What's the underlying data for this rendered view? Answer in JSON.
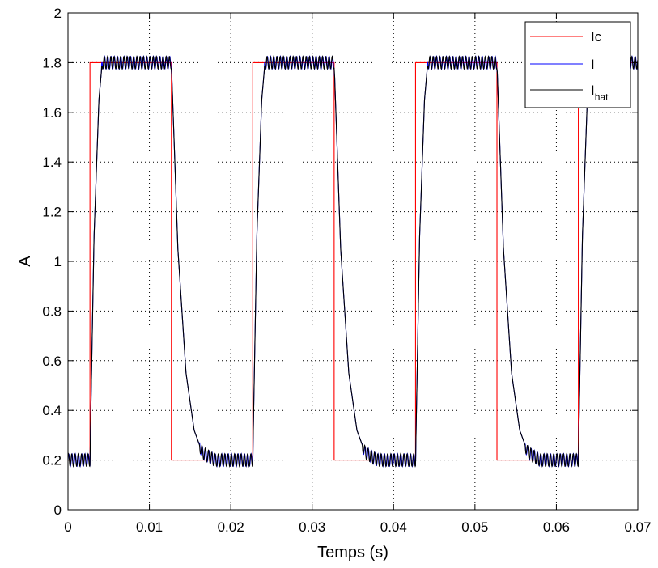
{
  "chart_data": {
    "type": "line",
    "xlabel": "Temps (s)",
    "ylabel": "A",
    "xlim": [
      0,
      0.07
    ],
    "ylim": [
      0,
      2
    ],
    "xticks": [
      "0",
      "0.01",
      "0.02",
      "0.03",
      "0.04",
      "0.05",
      "0.06",
      "0.07"
    ],
    "yticks": [
      "0",
      "0.2",
      "0.4",
      "0.6",
      "0.8",
      "1",
      "1.2",
      "1.4",
      "1.6",
      "1.8",
      "2"
    ],
    "grid": true,
    "legend_position": "top-right",
    "series": [
      {
        "name": "Ic",
        "color": "#ff0000",
        "x": [
          0,
          0.0027,
          0.0027,
          0.0127,
          0.0127,
          0.0227,
          0.0227,
          0.0327,
          0.0327,
          0.0427,
          0.0427,
          0.0527,
          0.0527,
          0.0627,
          0.0627,
          0.07
        ],
        "y": [
          0.2,
          0.2,
          1.8,
          1.8,
          0.2,
          0.2,
          1.8,
          1.8,
          0.2,
          0.2,
          1.8,
          1.8,
          0.2,
          0.2,
          1.8,
          1.8
        ]
      },
      {
        "name": "I",
        "color": "#0000ff",
        "x": [
          0,
          0.0027,
          0.0032,
          0.0038,
          0.0042,
          0.0127,
          0.0135,
          0.0145,
          0.0155,
          0.0165,
          0.018,
          0.0227,
          0.0232,
          0.0238,
          0.0242,
          0.0327,
          0.0335,
          0.0345,
          0.0355,
          0.0365,
          0.038,
          0.0427,
          0.0432,
          0.0438,
          0.0442,
          0.0527,
          0.0535,
          0.0545,
          0.0555,
          0.0565,
          0.058,
          0.0627,
          0.0632,
          0.0638,
          0.0642,
          0.07
        ],
        "y": [
          0.2,
          0.2,
          1.1,
          1.65,
          1.8,
          1.8,
          1.05,
          0.55,
          0.32,
          0.23,
          0.2,
          0.2,
          1.1,
          1.65,
          1.8,
          1.8,
          1.05,
          0.55,
          0.32,
          0.23,
          0.2,
          0.2,
          1.1,
          1.65,
          1.8,
          1.8,
          1.05,
          0.55,
          0.32,
          0.23,
          0.2,
          0.2,
          1.1,
          1.65,
          1.8,
          1.8
        ]
      },
      {
        "name": "I_hat",
        "color": "#000000",
        "x": [
          0,
          0.0027,
          0.0032,
          0.0038,
          0.0042,
          0.0127,
          0.0135,
          0.0145,
          0.0155,
          0.0165,
          0.018,
          0.0227,
          0.0232,
          0.0238,
          0.0242,
          0.0327,
          0.0335,
          0.0345,
          0.0355,
          0.0365,
          0.038,
          0.0427,
          0.0432,
          0.0438,
          0.0442,
          0.0527,
          0.0535,
          0.0545,
          0.0555,
          0.0565,
          0.058,
          0.0627,
          0.0632,
          0.0638,
          0.0642,
          0.07
        ],
        "y": [
          0.2,
          0.2,
          1.1,
          1.65,
          1.8,
          1.8,
          1.05,
          0.55,
          0.32,
          0.23,
          0.2,
          0.2,
          1.1,
          1.65,
          1.8,
          1.8,
          1.05,
          0.55,
          0.32,
          0.23,
          0.2,
          0.2,
          1.1,
          1.65,
          1.8,
          1.8,
          1.05,
          0.55,
          0.32,
          0.23,
          0.2,
          0.2,
          1.1,
          1.65,
          1.8,
          1.8
        ]
      }
    ],
    "ripple_amplitude": 0.025,
    "ripple_period": 0.0004
  },
  "legend": {
    "ic_label": "Ic",
    "i_label": "I",
    "ihat_main": "I",
    "ihat_sub": "hat"
  }
}
